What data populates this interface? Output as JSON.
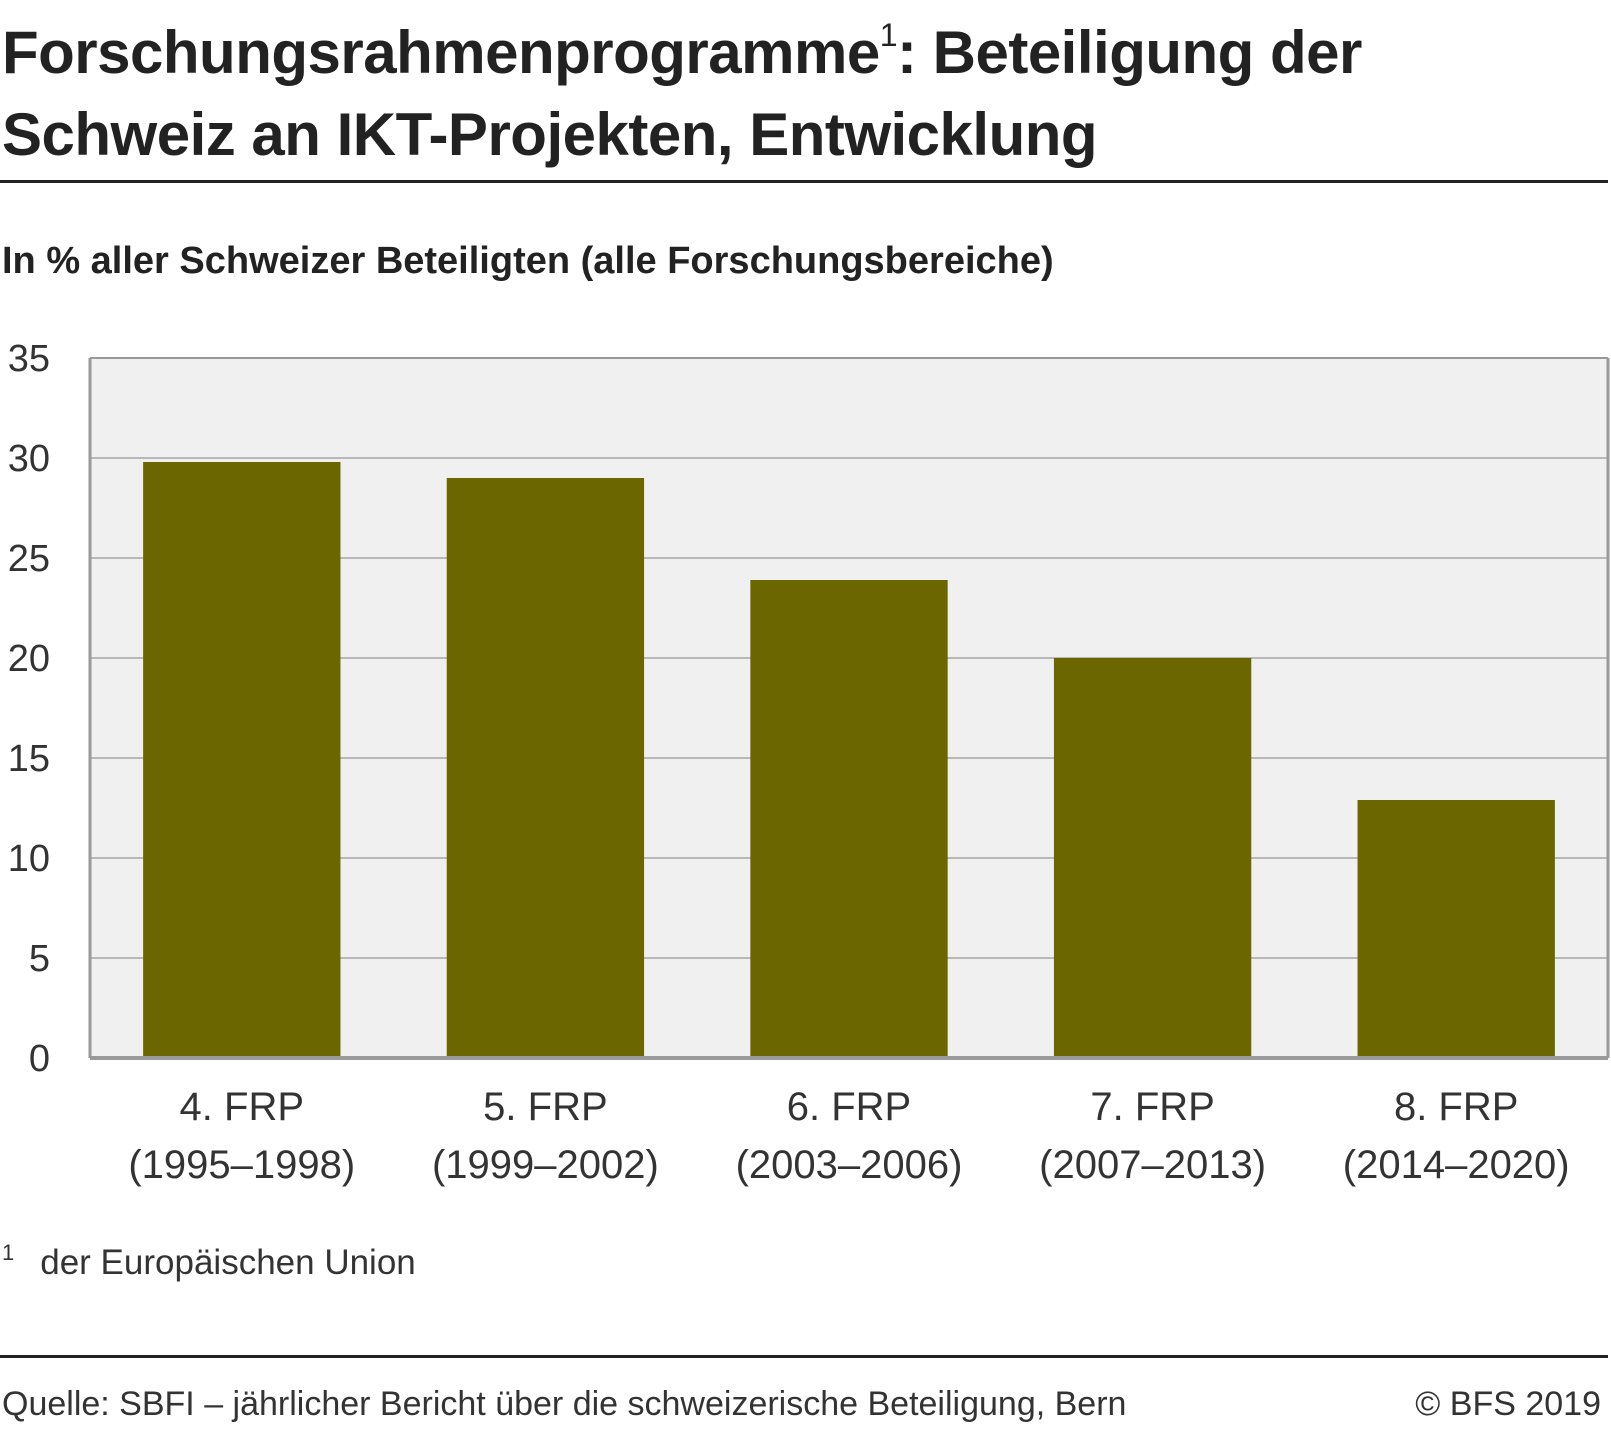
{
  "header": {
    "title_part1": "Forschungsrahmenprogramme",
    "title_sup": "1",
    "title_part2": ": Beteiligung der Schweiz an IKT-Projekten, Entwicklung",
    "subtitle": "In % aller Schweizer Beteiligten (alle Forschungsbereiche)"
  },
  "footnote": {
    "mark": "1",
    "text": "der Europäischen Union"
  },
  "footer": {
    "source": "Quelle: SBFI – jährlicher Bericht über die schweizerische Beteiligung, Bern",
    "copyright": "© BFS 2019"
  },
  "colors": {
    "bar": "#6b6600",
    "plot_bg": "#f0f0f0",
    "grid": "#b8b8b8",
    "axis": "#999999"
  },
  "chart_data": {
    "type": "bar",
    "categories": [
      [
        "4. FRP",
        "(1995–1998)"
      ],
      [
        "5. FRP",
        "(1999–2002)"
      ],
      [
        "6. FRP",
        "(2003–2006)"
      ],
      [
        "7. FRP",
        "(2007–2013)"
      ],
      [
        "8. FRP",
        "(2014–2020)"
      ]
    ],
    "values": [
      29.8,
      29.0,
      23.9,
      20.0,
      12.9
    ],
    "ylim": [
      0,
      35
    ],
    "yticks": [
      0,
      5,
      10,
      15,
      20,
      25,
      30,
      35
    ],
    "grid": true
  }
}
